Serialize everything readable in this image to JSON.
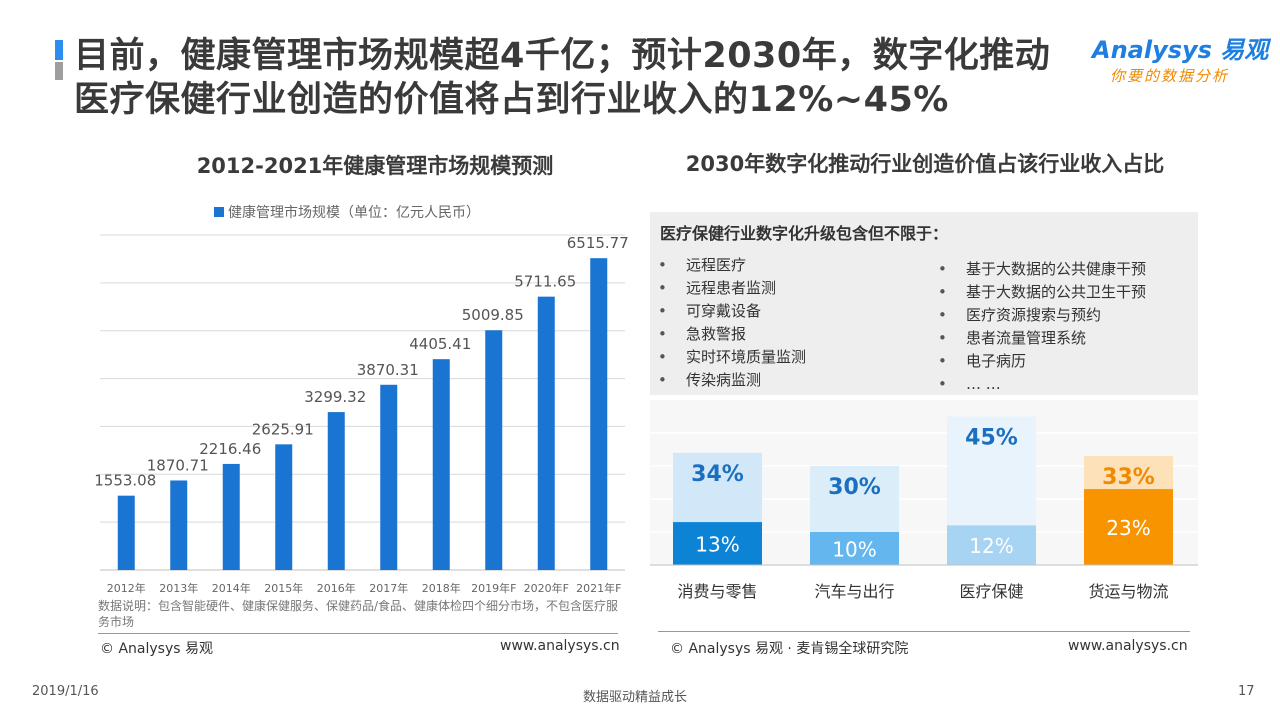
{
  "page": {
    "title": "目前，健康管理市场规模超4千亿；预计2030年，数字化推动医疗保健行业创造的价值将占到行业收入的12%~45%",
    "logo_brand": "Analysys 易观",
    "logo_slogan": "你要的数据分析"
  },
  "left_chart": {
    "title": "2012-2021年健康管理市场规模预测",
    "note": "数据说明：包含智能硬件、健康保健服务、保健药品/食品、健康体检四个细分市场，不包含医疗服务市场",
    "credit_left": "© Analysys 易观",
    "credit_right": "www.analysys.cn"
  },
  "right_chart": {
    "title": "2030年数字化推动行业创造价值占该行业收入占比",
    "box_heading": "医疗保健行业数字化升级包含但不限于：",
    "bullets_left": [
      "远程医疗",
      "远程患者监测",
      "可穿戴设备",
      "急救警报",
      "实时环境质量监测",
      "传染病监测"
    ],
    "bullets_right": [
      "基于大数据的公共健康干预",
      "基于大数据的公共卫生干预",
      "医疗资源搜索与预约",
      "患者流量管理系统",
      "电子病历",
      "… …"
    ],
    "credit_left": "© Analysys 易观 · 麦肯锡全球研究院",
    "credit_right": "www.analysys.cn"
  },
  "footer": {
    "date": "2019/1/16",
    "center": "数据驱动精益成长",
    "page_number": "17"
  },
  "chart_data": [
    {
      "type": "bar",
      "title": "2012-2021年健康管理市场规模预测",
      "categories": [
        "2012年",
        "2013年",
        "2014年",
        "2015年",
        "2016年",
        "2017年",
        "2018年",
        "2019年F",
        "2020年F",
        "2021年F"
      ],
      "series": [
        {
          "name": "健康管理市场规模（单位：亿元人民币）",
          "values": [
            1553.08,
            1870.71,
            2216.46,
            2625.91,
            3299.32,
            3870.31,
            4405.41,
            5009.85,
            5711.65,
            6515.77
          ]
        }
      ],
      "value_labels": [
        "1553.08",
        "1870.71",
        "2216.46",
        "2625.91",
        "3299.32",
        "3870.31",
        "4405.41",
        "5009.85",
        "5711.65",
        "6515.77"
      ],
      "ylim": [
        0,
        7000
      ],
      "grid": true,
      "legend": "top",
      "color": "#1a74d2"
    },
    {
      "type": "bar",
      "title": "2030年数字化推动行业创造价值占该行业收入占比",
      "categories": [
        "消费与零售",
        "汽车与出行",
        "医疗保健",
        "货运与物流"
      ],
      "series": [
        {
          "name": "low",
          "values": [
            13,
            10,
            12,
            23
          ],
          "labels": [
            "13%",
            "10%",
            "12%",
            "23%"
          ]
        },
        {
          "name": "high",
          "values": [
            34,
            30,
            45,
            33
          ],
          "labels": [
            "34%",
            "30%",
            "45%",
            "33%"
          ]
        }
      ],
      "ylim": [
        0,
        50
      ],
      "grid": true,
      "colors_low": [
        "#0d83d6",
        "#64b6ee",
        "#a8d4f4",
        "#f79400"
      ],
      "colors_high": [
        "#d2e8f8",
        "#dcedfa",
        "#e9f3fc",
        "#fde1b8"
      ],
      "high_label_colors": [
        "#1a6fc0",
        "#1a6fc0",
        "#1a6fc0",
        "#f08a00"
      ]
    }
  ]
}
